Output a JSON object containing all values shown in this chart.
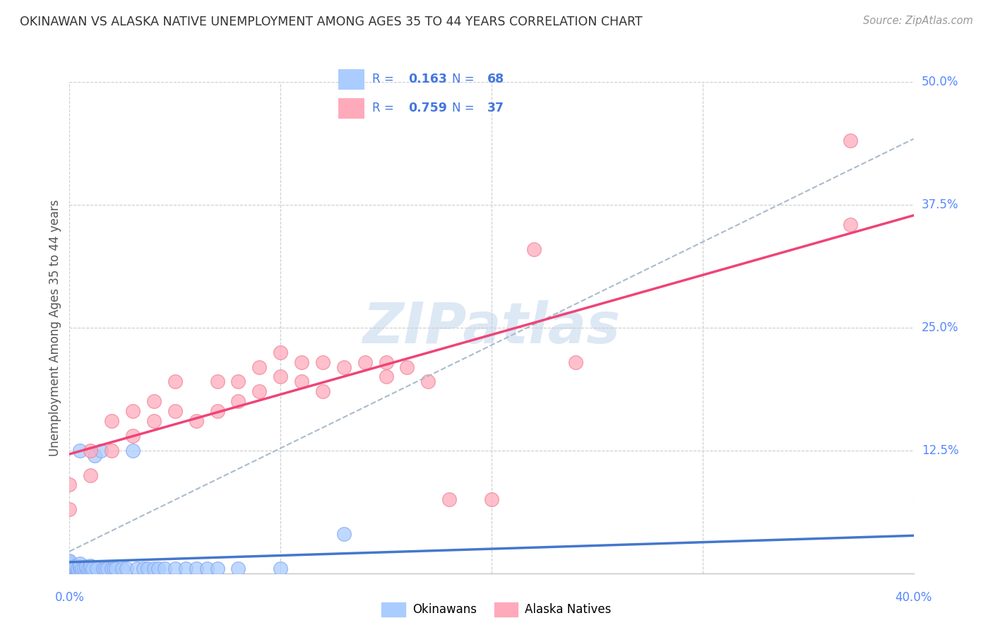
{
  "title": "OKINAWAN VS ALASKA NATIVE UNEMPLOYMENT AMONG AGES 35 TO 44 YEARS CORRELATION CHART",
  "source": "Source: ZipAtlas.com",
  "tick_color": "#5588ff",
  "ylabel": "Unemployment Among Ages 35 to 44 years",
  "xlim": [
    0.0,
    0.4
  ],
  "ylim": [
    0.0,
    0.5
  ],
  "yticks": [
    0.0,
    0.125,
    0.25,
    0.375,
    0.5
  ],
  "ytick_labels": [
    "",
    "12.5%",
    "25.0%",
    "37.5%",
    "50.0%"
  ],
  "xtick_labels_pos": [
    [
      0.0,
      "0.0%"
    ],
    [
      0.4,
      "40.0%"
    ]
  ],
  "background_color": "#ffffff",
  "grid_color": "#cccccc",
  "okinawan_color": "#aaccff",
  "alaska_color": "#ffaabb",
  "okinawan_edge_color": "#88aaee",
  "alaska_edge_color": "#ee8899",
  "okinawan_line_color": "#4477cc",
  "alaska_line_color": "#ee4477",
  "dash_line_color": "#aabbcc",
  "legend_text_color": "#4477dd",
  "watermark_color": "#dde8f5",
  "okinawan_x": [
    0.0,
    0.0,
    0.0,
    0.0,
    0.0,
    0.0,
    0.0,
    0.0,
    0.0,
    0.0,
    0.0,
    0.0,
    0.0,
    0.0,
    0.0,
    0.0,
    0.0,
    0.0,
    0.0,
    0.0,
    0.0,
    0.0,
    0.0,
    0.0,
    0.0,
    0.0,
    0.003,
    0.003,
    0.004,
    0.004,
    0.005,
    0.005,
    0.005,
    0.005,
    0.006,
    0.007,
    0.008,
    0.008,
    0.009,
    0.01,
    0.01,
    0.011,
    0.012,
    0.013,
    0.015,
    0.016,
    0.017,
    0.018,
    0.02,
    0.021,
    0.022,
    0.025,
    0.027,
    0.03,
    0.032,
    0.035,
    0.037,
    0.04,
    0.042,
    0.045,
    0.05,
    0.055,
    0.06,
    0.065,
    0.07,
    0.08,
    0.1,
    0.13
  ],
  "okinawan_y": [
    0.0,
    0.0,
    0.0,
    0.0,
    0.0,
    0.0,
    0.0,
    0.0,
    0.0,
    0.002,
    0.003,
    0.004,
    0.005,
    0.005,
    0.005,
    0.005,
    0.005,
    0.007,
    0.008,
    0.008,
    0.009,
    0.01,
    0.01,
    0.01,
    0.012,
    0.013,
    0.005,
    0.008,
    0.003,
    0.005,
    0.005,
    0.007,
    0.01,
    0.125,
    0.005,
    0.005,
    0.005,
    0.007,
    0.005,
    0.005,
    0.008,
    0.005,
    0.12,
    0.005,
    0.125,
    0.005,
    0.005,
    0.005,
    0.005,
    0.005,
    0.005,
    0.005,
    0.005,
    0.125,
    0.005,
    0.005,
    0.005,
    0.005,
    0.005,
    0.005,
    0.005,
    0.005,
    0.005,
    0.005,
    0.005,
    0.005,
    0.005,
    0.04
  ],
  "alaska_x": [
    0.0,
    0.0,
    0.01,
    0.01,
    0.02,
    0.02,
    0.03,
    0.03,
    0.04,
    0.04,
    0.05,
    0.05,
    0.06,
    0.07,
    0.07,
    0.08,
    0.08,
    0.09,
    0.09,
    0.1,
    0.1,
    0.11,
    0.11,
    0.12,
    0.12,
    0.13,
    0.14,
    0.15,
    0.15,
    0.16,
    0.17,
    0.18,
    0.2,
    0.22,
    0.24,
    0.37,
    0.37
  ],
  "alaska_y": [
    0.065,
    0.09,
    0.1,
    0.125,
    0.125,
    0.155,
    0.14,
    0.165,
    0.155,
    0.175,
    0.165,
    0.195,
    0.155,
    0.165,
    0.195,
    0.175,
    0.195,
    0.185,
    0.21,
    0.2,
    0.225,
    0.195,
    0.215,
    0.185,
    0.215,
    0.21,
    0.215,
    0.2,
    0.215,
    0.21,
    0.195,
    0.075,
    0.075,
    0.33,
    0.215,
    0.355,
    0.44
  ]
}
